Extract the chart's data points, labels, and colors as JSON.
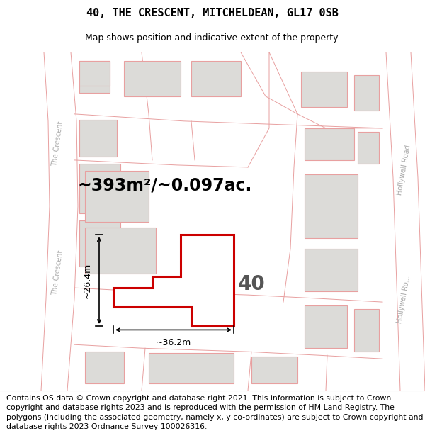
{
  "title": "40, THE CRESCENT, MITCHELDEAN, GL17 0SB",
  "subtitle": "Map shows position and indicative extent of the property.",
  "area_text": "~393m²/~0.097ac.",
  "width_label": "~36.2m",
  "height_label": "~26.4m",
  "number_label": "40",
  "footer_text": "Contains OS data © Crown copyright and database right 2021. This information is subject to Crown copyright and database rights 2023 and is reproduced with the permission of HM Land Registry. The polygons (including the associated geometry, namely x, y co-ordinates) are subject to Crown copyright and database rights 2023 Ordnance Survey 100026316.",
  "bg_color": "#f7f7f5",
  "property_fill": "#ffffff",
  "property_edge": "#cc0000",
  "neighbor_fill": "#dcdbd8",
  "neighbor_edge": "#e8a0a0",
  "road_line_color": "#e8a0a0",
  "title_fontsize": 11,
  "subtitle_fontsize": 9,
  "area_fontsize": 17,
  "number_fontsize": 20,
  "footer_fontsize": 7.8,
  "dim_label_fontsize": 9,
  "road_label_fontsize": 7,
  "road_label_color": "#aaaaaa"
}
